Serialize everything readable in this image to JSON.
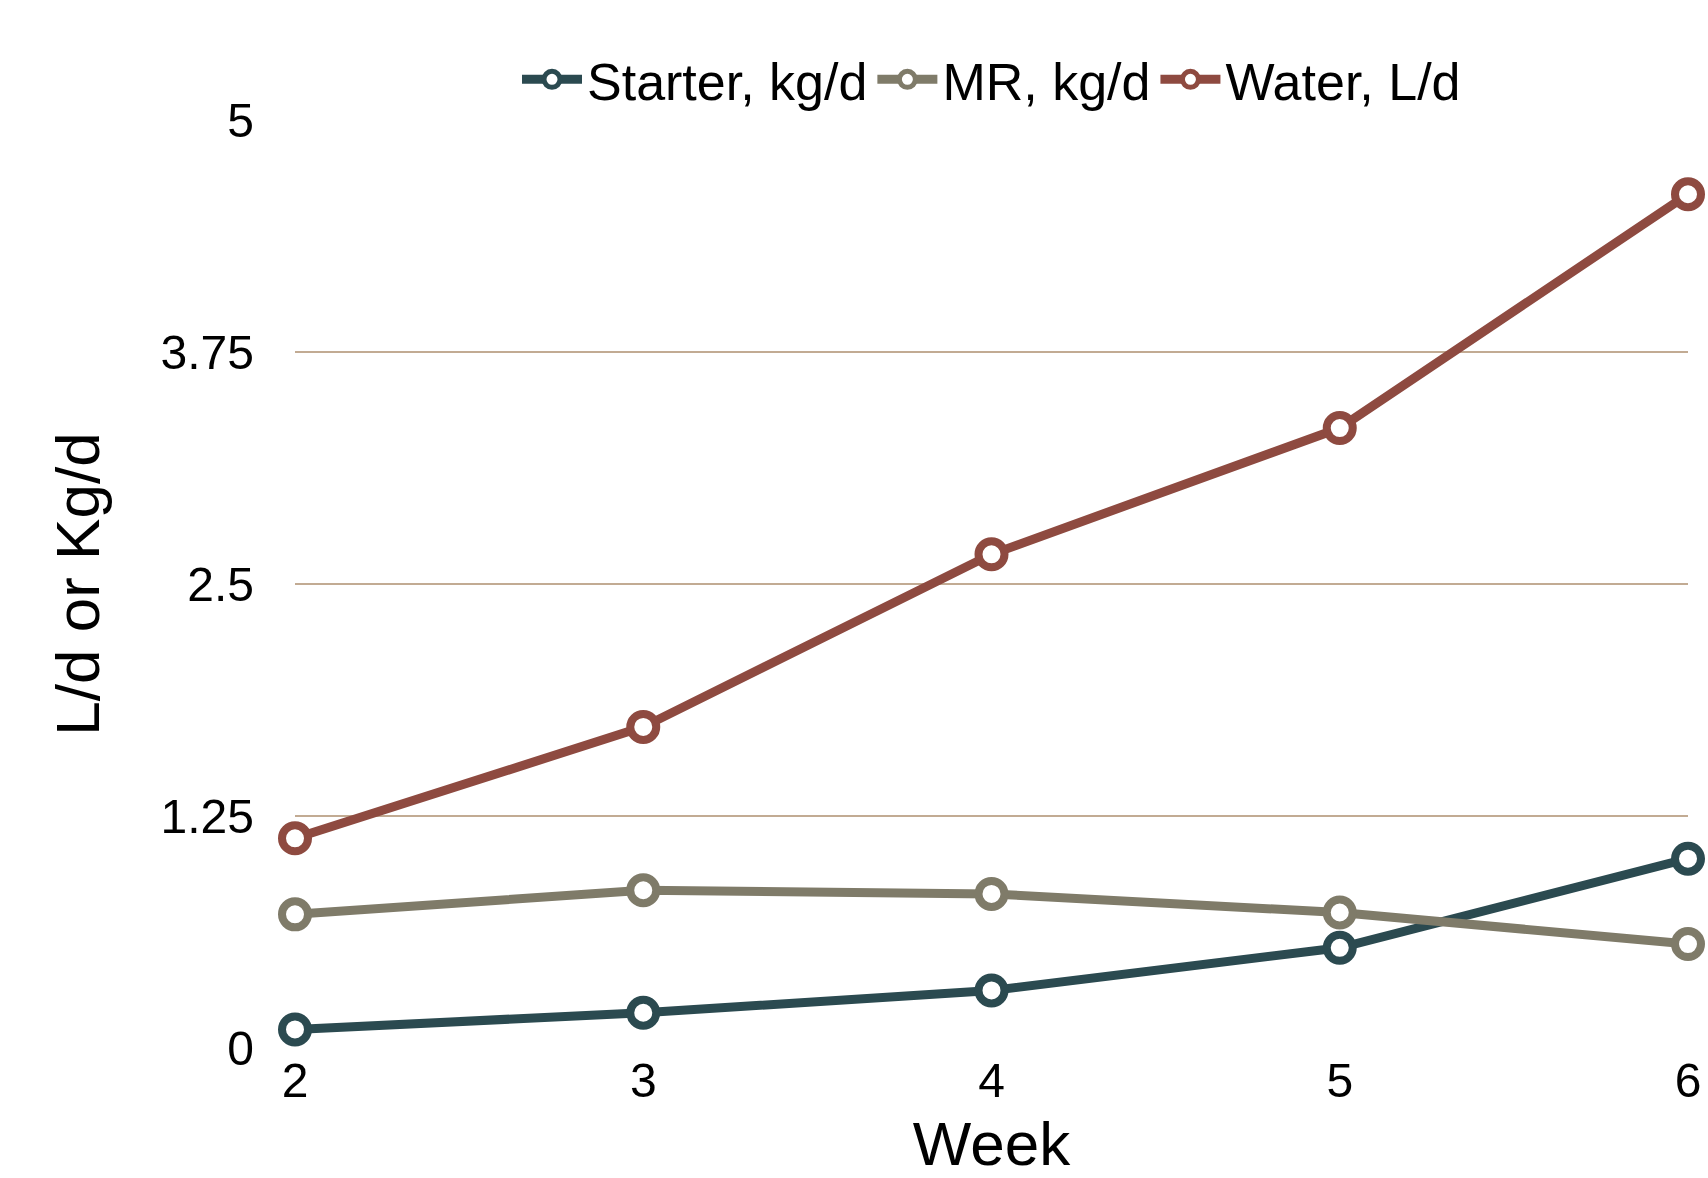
{
  "chart_data": {
    "type": "line",
    "xlabel": "Week",
    "ylabel": "L/d or Kg/d",
    "x": [
      2,
      3,
      4,
      5,
      6
    ],
    "series": [
      {
        "name": "Starter, kg/d",
        "color": "#2b4a50",
        "values": [
          0.1,
          0.19,
          0.31,
          0.54,
          1.02
        ]
      },
      {
        "name": "MR, kg/d",
        "color": "#7f7b69",
        "values": [
          0.72,
          0.85,
          0.83,
          0.73,
          0.56
        ]
      },
      {
        "name": "Water, L/d",
        "color": "#8e4a40",
        "values": [
          1.13,
          1.73,
          2.66,
          3.34,
          4.6
        ]
      }
    ],
    "xlim": [
      2,
      6
    ],
    "xticks": [
      2,
      3,
      4,
      5,
      6
    ],
    "ylim": [
      0,
      5
    ],
    "yticks": [
      0,
      1.25,
      2.5,
      3.75,
      5
    ],
    "grid": "y",
    "legend": "top",
    "marker": "circle",
    "line_style": "solid"
  }
}
